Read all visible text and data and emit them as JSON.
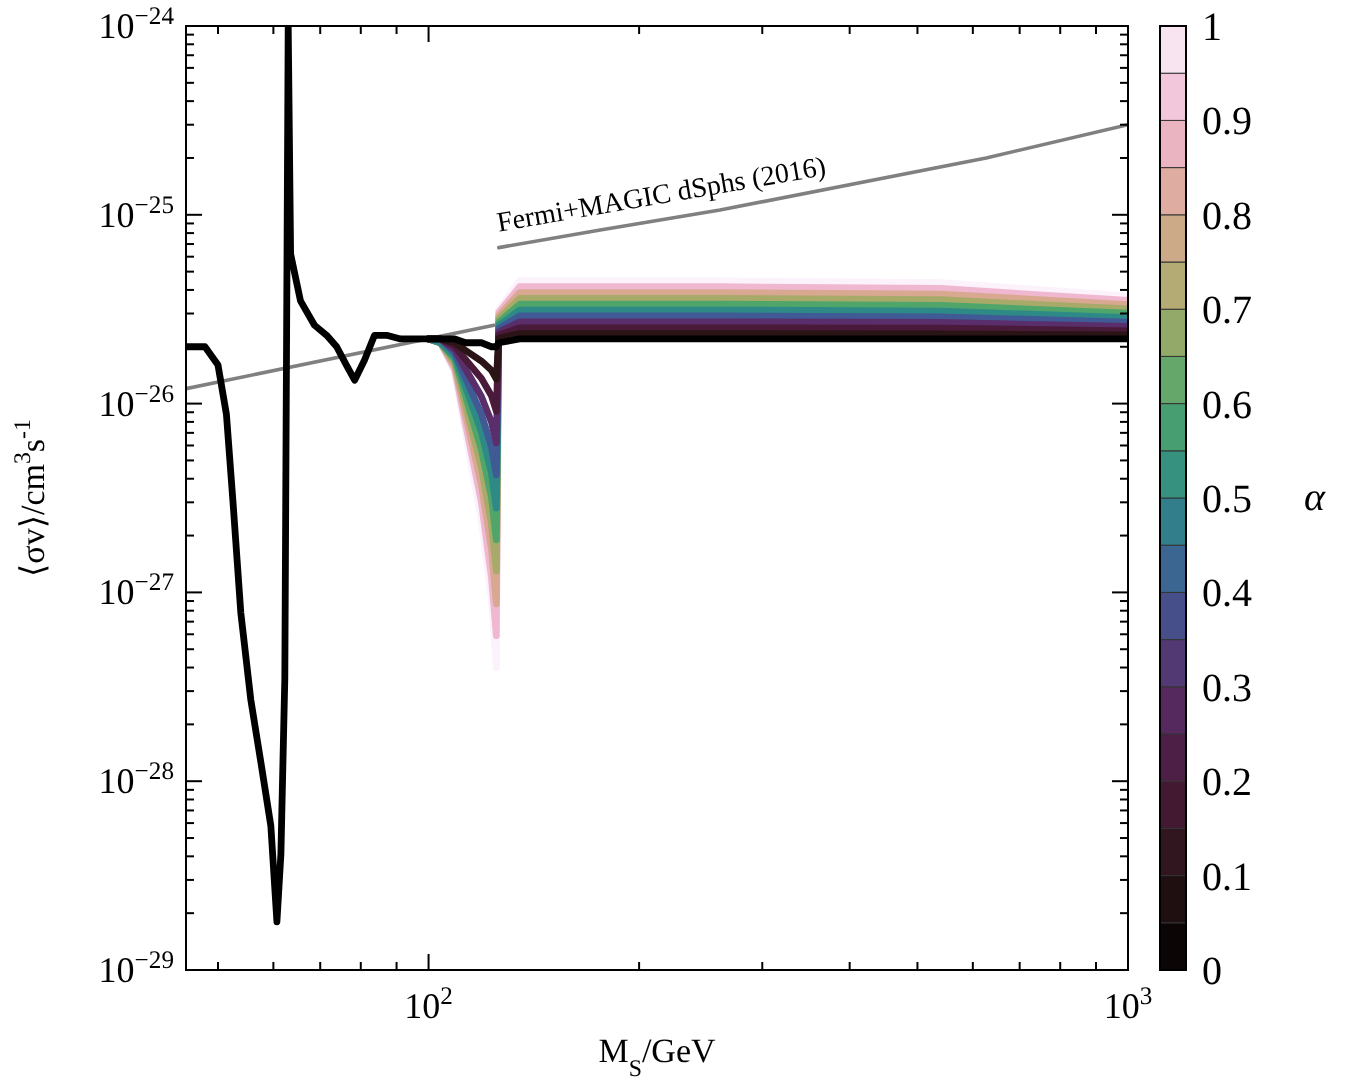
{
  "chart_data": {
    "type": "line",
    "xlabel": "M$_{S}$/GeV",
    "ylabel": "⟨σv⟩/cm$^{3}$s$^{-1}$",
    "clabel": "α",
    "log": "xy",
    "xlim": [
      45,
      1000
    ],
    "ylim": [
      1e-29,
      1e-24
    ],
    "xticks": [
      {
        "value": 50,
        "label": null
      },
      {
        "value": 60,
        "label": null
      },
      {
        "value": 70,
        "label": null
      },
      {
        "value": 80,
        "label": null
      },
      {
        "value": 90,
        "label": null
      },
      {
        "value": 100,
        "label": "10$^{2}$"
      },
      {
        "value": 200,
        "label": null
      },
      {
        "value": 300,
        "label": null
      },
      {
        "value": 400,
        "label": null
      },
      {
        "value": 500,
        "label": null
      },
      {
        "value": 600,
        "label": null
      },
      {
        "value": 700,
        "label": null
      },
      {
        "value": 800,
        "label": null
      },
      {
        "value": 900,
        "label": null
      },
      {
        "value": 1000,
        "label": "10$^{3}$"
      }
    ],
    "yticks": [
      {
        "value": 1e-29,
        "label": "10$^{−29}$"
      },
      {
        "value": 2e-29,
        "label": null
      },
      {
        "value": 3e-29,
        "label": null
      },
      {
        "value": 4e-29,
        "label": null
      },
      {
        "value": 5e-29,
        "label": null
      },
      {
        "value": 6e-29,
        "label": null
      },
      {
        "value": 7e-29,
        "label": null
      },
      {
        "value": 8e-29,
        "label": null
      },
      {
        "value": 9e-29,
        "label": null
      },
      {
        "value": 1e-28,
        "label": "10$^{−28}$"
      },
      {
        "value": 2e-28,
        "label": null
      },
      {
        "value": 3e-28,
        "label": null
      },
      {
        "value": 4e-28,
        "label": null
      },
      {
        "value": 5e-28,
        "label": null
      },
      {
        "value": 6e-28,
        "label": null
      },
      {
        "value": 7e-28,
        "label": null
      },
      {
        "value": 8e-28,
        "label": null
      },
      {
        "value": 9e-28,
        "label": null
      },
      {
        "value": 1e-27,
        "label": "10$^{−27}$"
      },
      {
        "value": 2e-27,
        "label": null
      },
      {
        "value": 3e-27,
        "label": null
      },
      {
        "value": 4e-27,
        "label": null
      },
      {
        "value": 5e-27,
        "label": null
      },
      {
        "value": 6e-27,
        "label": null
      },
      {
        "value": 7e-27,
        "label": null
      },
      {
        "value": 8e-27,
        "label": null
      },
      {
        "value": 9e-27,
        "label": null
      },
      {
        "value": 1e-26,
        "label": "10$^{−26}$"
      },
      {
        "value": 2e-26,
        "label": null
      },
      {
        "value": 3e-26,
        "label": null
      },
      {
        "value": 4e-26,
        "label": null
      },
      {
        "value": 5e-26,
        "label": null
      },
      {
        "value": 6e-26,
        "label": null
      },
      {
        "value": 7e-26,
        "label": null
      },
      {
        "value": 8e-26,
        "label": null
      },
      {
        "value": 9e-26,
        "label": null
      },
      {
        "value": 1e-25,
        "label": "10$^{−25}$"
      },
      {
        "value": 2e-25,
        "label": null
      },
      {
        "value": 3e-25,
        "label": null
      },
      {
        "value": 4e-25,
        "label": null
      },
      {
        "value": 5e-25,
        "label": null
      },
      {
        "value": 6e-25,
        "label": null
      },
      {
        "value": 7e-25,
        "label": null
      },
      {
        "value": 8e-25,
        "label": null
      },
      {
        "value": 9e-25,
        "label": null
      },
      {
        "value": 1e-24,
        "label": "10$^{−24}$"
      }
    ],
    "clim": [
      0,
      1
    ],
    "cticks": [
      0,
      0.1,
      0.2,
      0.3,
      0.4,
      0.5,
      0.6,
      0.7,
      0.8,
      0.9,
      1
    ],
    "series": [
      {
        "color": "#000000",
        "x": [
          45,
          47.9,
          50,
          51.4,
          52.5,
          53.9,
          55.7,
          57.5,
          59.5,
          60.7,
          61.5,
          62.3,
          63,
          63.5,
          65.6,
          68.7,
          71.5,
          73.9,
          76.3,
          78.4,
          81,
          83.7,
          87.1,
          91.2,
          95.5,
          100,
          104,
          109,
          113,
          119,
          123,
          125,
          126,
          135,
          260,
          540,
          1000
        ],
        "values": [
          2e-26,
          2e-26,
          1.6e-26,
          8.8e-27,
          3.1e-27,
          7.8e-28,
          2.7e-28,
          1.3e-28,
          5.8e-29,
          1.8e-29,
          4.1e-29,
          3.5e-28,
          1e-24,
          6.2e-26,
          3.5e-26,
          2.6e-26,
          2.3e-26,
          2e-26,
          1.6e-26,
          1.33e-26,
          1.7e-26,
          2.3e-26,
          2.3e-26,
          2.2e-26,
          2.2e-26,
          2.2e-26,
          2.2e-26,
          2.2e-26,
          2.1e-26,
          2.1e-26,
          2e-26,
          2e-26,
          2.1e-26,
          2.2e-26,
          2.2e-26,
          2.2e-26,
          2.2e-26
        ]
      },
      {
        "color": "#2a1416",
        "x": [
          100,
          104,
          109,
          113,
          119,
          123,
          125,
          126,
          135,
          260,
          540,
          1000
        ],
        "values": [
          2.2e-26,
          2.2e-26,
          2.1e-26,
          1.91e-26,
          1.68e-26,
          1.5e-26,
          1.35e-26,
          2.22e-26,
          2.35e-26,
          2.35e-26,
          2.34e-26,
          2.31e-26
        ]
      },
      {
        "color": "#4a1a3a",
        "x": [
          100,
          104,
          109,
          113,
          119,
          123,
          125,
          126,
          135,
          260,
          540,
          1000
        ],
        "values": [
          2.2e-26,
          2.2e-26,
          2.01e-26,
          1.71e-26,
          1.36e-26,
          1.1e-26,
          9.1e-27,
          2.31e-26,
          2.52e-26,
          2.52e-26,
          2.51e-26,
          2.43e-26
        ]
      },
      {
        "color": "#5a2e6a",
        "x": [
          100,
          104,
          109,
          113,
          119,
          123,
          125,
          126,
          135,
          260,
          540,
          1000
        ],
        "values": [
          2.2e-26,
          2.2e-26,
          1.93e-26,
          1.52e-26,
          1.09e-26,
          8e-27,
          6.2e-27,
          2.4e-26,
          2.71e-26,
          2.71e-26,
          2.69e-26,
          2.56e-26
        ]
      },
      {
        "color": "#3f5a94",
        "x": [
          100,
          104,
          109,
          113,
          119,
          123,
          125,
          126,
          135,
          260,
          540,
          1000
        ],
        "values": [
          2.2e-26,
          2.2e-26,
          1.85e-26,
          1.36e-26,
          8.8e-27,
          5.9e-27,
          4.2e-27,
          2.5e-26,
          2.91e-26,
          2.91e-26,
          2.88e-26,
          2.7e-26
        ]
      },
      {
        "color": "#2e8a86",
        "x": [
          100,
          104,
          109,
          113,
          119,
          123,
          125,
          126,
          135,
          260,
          540,
          1000
        ],
        "values": [
          2.2e-26,
          2.1e-26,
          1.78e-26,
          1.22e-26,
          7.1e-27,
          4.3e-27,
          2.8e-27,
          2.6e-26,
          3.13e-26,
          3.13e-26,
          3.09e-26,
          2.85e-26
        ]
      },
      {
        "color": "#4fa56a",
        "x": [
          100,
          104,
          109,
          113,
          119,
          123,
          125,
          126,
          135,
          260,
          540,
          1000
        ],
        "values": [
          2.2e-26,
          2.1e-26,
          1.71e-26,
          1.09e-26,
          5.7e-27,
          3.2e-27,
          1.9e-27,
          2.7e-26,
          3.36e-26,
          3.36e-26,
          3.31e-26,
          3.01e-26
        ]
      },
      {
        "color": "#a8aa6a",
        "x": [
          100,
          104,
          109,
          113,
          119,
          123,
          125,
          126,
          135,
          260,
          540,
          1000
        ],
        "values": [
          2.2e-26,
          2.1e-26,
          1.64e-26,
          9.7e-27,
          4.6e-27,
          2.3e-27,
          1.3e-27,
          2.81e-26,
          3.61e-26,
          3.61e-26,
          3.55e-26,
          3.17e-26
        ]
      },
      {
        "color": "#d8a890",
        "x": [
          100,
          104,
          109,
          113,
          119,
          123,
          125,
          126,
          135,
          260,
          540,
          1000
        ],
        "values": [
          2.2e-26,
          2.1e-26,
          1.57e-26,
          8.7e-27,
          3.7e-27,
          1.7e-27,
          8.7e-28,
          2.92e-26,
          3.87e-26,
          3.87e-26,
          3.8e-26,
          3.34e-26
        ]
      },
      {
        "color": "#f0b8d0",
        "x": [
          100,
          104,
          109,
          113,
          119,
          123,
          125,
          126,
          135,
          260,
          540,
          1000
        ],
        "values": [
          2.2e-26,
          2.1e-26,
          1.51e-26,
          7.7e-27,
          3e-27,
          1.2e-27,
          5.9e-28,
          3.04e-26,
          4.16e-26,
          4.16e-26,
          4.07e-26,
          3.52e-26
        ]
      },
      {
        "color": "#fbf2fc",
        "x": [
          100,
          104,
          109,
          113,
          119,
          123,
          125,
          126,
          135,
          260,
          540,
          1000
        ],
        "values": [
          2.2e-26,
          2.1e-26,
          1.45e-26,
          6.9e-27,
          2.4e-27,
          9.1e-28,
          4e-28,
          3.16e-26,
          4.47e-26,
          4.47e-26,
          4.37e-26,
          3.72e-26
        ]
      },
      {
        "name": "Fermi+MAGIC dSphs (2016)",
        "color": "#808080",
        "x": [
          45,
          124,
          125,
          126,
          176,
          261,
          627,
          1000
        ],
        "values": [
          1.2e-26,
          2.6e-26,
          null,
          6.7e-26,
          8.3e-26,
          1.06e-25,
          2e-25,
          3e-25
        ]
      }
    ]
  }
}
